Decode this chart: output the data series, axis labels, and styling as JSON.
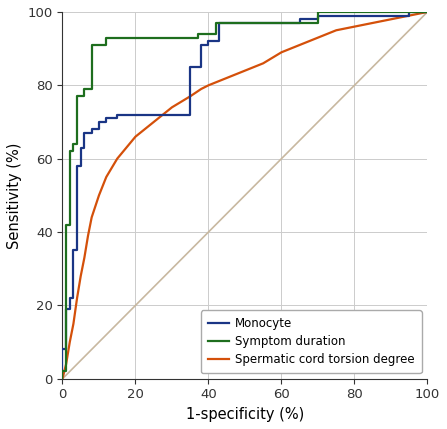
{
  "monocyte_x": [
    0,
    0,
    0.01,
    0.01,
    0.02,
    0.02,
    0.03,
    0.03,
    0.04,
    0.04,
    0.05,
    0.05,
    0.06,
    0.06,
    0.08,
    0.08,
    0.1,
    0.1,
    0.12,
    0.12,
    0.15,
    0.15,
    0.35,
    0.35,
    0.38,
    0.38,
    0.4,
    0.4,
    0.43,
    0.43,
    0.65,
    0.65,
    0.7,
    0.7,
    0.95,
    0.95,
    1.0
  ],
  "monocyte_y": [
    0,
    0.08,
    0.08,
    0.19,
    0.19,
    0.22,
    0.22,
    0.35,
    0.35,
    0.58,
    0.58,
    0.63,
    0.63,
    0.67,
    0.67,
    0.68,
    0.68,
    0.7,
    0.7,
    0.71,
    0.71,
    0.72,
    0.72,
    0.85,
    0.85,
    0.91,
    0.91,
    0.92,
    0.92,
    0.97,
    0.97,
    0.98,
    0.98,
    0.99,
    0.99,
    1.0,
    1.0
  ],
  "symptom_x": [
    0,
    0,
    0.01,
    0.01,
    0.02,
    0.02,
    0.03,
    0.03,
    0.04,
    0.04,
    0.06,
    0.06,
    0.08,
    0.08,
    0.12,
    0.12,
    0.37,
    0.37,
    0.42,
    0.42,
    0.65,
    0.65,
    0.7,
    0.7,
    0.97,
    0.97,
    1.0
  ],
  "symptom_y": [
    0,
    0.02,
    0.02,
    0.42,
    0.42,
    0.62,
    0.62,
    0.64,
    0.64,
    0.77,
    0.77,
    0.79,
    0.79,
    0.91,
    0.91,
    0.93,
    0.93,
    0.94,
    0.94,
    0.97,
    0.97,
    0.97,
    0.97,
    1.0,
    1.0,
    1.0,
    1.0
  ],
  "spermatic_x": [
    0,
    0.01,
    0.02,
    0.03,
    0.04,
    0.05,
    0.06,
    0.07,
    0.08,
    0.09,
    0.1,
    0.12,
    0.15,
    0.2,
    0.25,
    0.3,
    0.35,
    0.38,
    0.4,
    0.45,
    0.5,
    0.55,
    0.6,
    0.65,
    0.7,
    0.75,
    0.8,
    0.85,
    0.9,
    0.95,
    1.0
  ],
  "spermatic_y": [
    0,
    0.04,
    0.1,
    0.15,
    0.22,
    0.28,
    0.33,
    0.39,
    0.44,
    0.47,
    0.5,
    0.55,
    0.6,
    0.66,
    0.7,
    0.74,
    0.77,
    0.79,
    0.8,
    0.82,
    0.84,
    0.86,
    0.89,
    0.91,
    0.93,
    0.95,
    0.96,
    0.97,
    0.98,
    0.99,
    1.0
  ],
  "monocyte_color": "#1a3585",
  "symptom_color": "#1e6e1e",
  "spermatic_color": "#d4500a",
  "diagonal_color": "#c8b8a0",
  "bg_color": "#ffffff",
  "grid_color": "#cccccc",
  "xlabel": "1-specificity (%)",
  "ylabel": "Sensitivity (%)",
  "xlim": [
    0,
    1.0
  ],
  "ylim": [
    0,
    1.0
  ],
  "xticks": [
    0,
    0.2,
    0.4,
    0.6,
    0.8,
    1.0
  ],
  "yticks": [
    0,
    0.2,
    0.4,
    0.6,
    0.8,
    1.0
  ],
  "xticklabels": [
    "0",
    "20",
    "40",
    "60",
    "80",
    "100"
  ],
  "yticklabels": [
    "0",
    "20",
    "40",
    "60",
    "80",
    "100"
  ],
  "legend_labels": [
    "Monocyte",
    "Symptom duration",
    "Spermatic cord torsion degree"
  ],
  "linewidth": 1.6,
  "figsize": [
    4.47,
    4.29
  ],
  "dpi": 100
}
